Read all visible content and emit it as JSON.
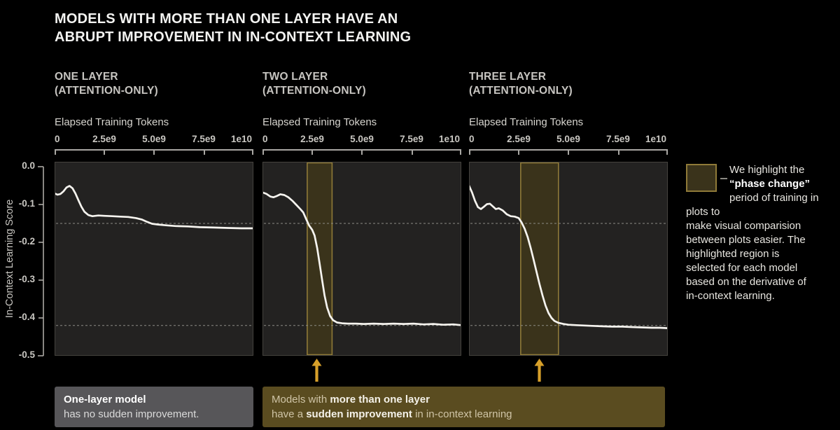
{
  "title": "MODELS WITH MORE THAN ONE LAYER HAVE AN\nABRUPT IMPROVEMENT IN IN-CONTEXT LEARNING",
  "y_axis": {
    "label": "In-Context Learning Score",
    "ticks": [
      "0.0",
      "-0.1",
      "-0.2",
      "-0.3",
      "-0.4",
      "-0.5"
    ]
  },
  "panels": [
    {
      "heading": "ONE LAYER\n(ATTENTION-ONLY)",
      "x_label": "Elapsed Training Tokens",
      "x_ticks": [
        "0",
        "2.5e9",
        "5.0e9",
        "7.5e9",
        "1e10"
      ]
    },
    {
      "heading": "TWO LAYER\n(ATTENTION-ONLY)",
      "x_label": "Elapsed Training Tokens",
      "x_ticks": [
        "0",
        "2.5e9",
        "5.0e9",
        "7.5e9",
        "1e10"
      ]
    },
    {
      "heading": "THREE LAYER\n(ATTENTION-ONLY)",
      "x_label": "Elapsed Training Tokens",
      "x_ticks": [
        "0",
        "2.5e9",
        "5.0e9",
        "7.5e9",
        "1e10"
      ]
    }
  ],
  "legend": {
    "parts": [
      {
        "t": "We highlight the\n"
      },
      {
        "t": "“phase change”",
        "b": true
      },
      {
        "t": "\nperiod of training in plots to\nmake visual comparision\nbetween plots easier. The\nhighlighted region is\nselected for each model\nbased on the derivative of\nin-context learning."
      }
    ]
  },
  "captions": {
    "one_layer": {
      "parts": [
        {
          "t": "One-layer model",
          "b": true
        },
        {
          "t": "\nhas no sudden improvement."
        }
      ]
    },
    "multi_layer": {
      "parts": [
        {
          "t": "Models with "
        },
        {
          "t": "more than one layer",
          "b": true
        },
        {
          "t": "\nhave a "
        },
        {
          "t": "sudden improvement",
          "b": true
        },
        {
          "t": " in in-context learning"
        }
      ]
    }
  },
  "colors": {
    "page_bg": "#000000",
    "plot_bg": "#232221",
    "plot_border": "#45433e",
    "curve": "#f6f4ef",
    "dashed_line": "#8c8c85",
    "highlight_fill": "#3a331b",
    "highlight_border": "#8f7a38",
    "arrow": "#d7a02a",
    "gray_box_bg": "#575659",
    "olive_box_bg": "#5a4c20",
    "axis": "#a9a7a3"
  },
  "chart_data": [
    {
      "type": "line",
      "title": "ONE LAYER (ATTENTION-ONLY)",
      "xlabel": "Elapsed Training Tokens",
      "ylabel": "In-Context Learning Score",
      "x_unit": "1e9 tokens",
      "xlim": [
        0,
        10
      ],
      "ylim": [
        -0.5,
        0
      ],
      "x_tick_labels": [
        "0",
        "2.5e9",
        "5.0e9",
        "7.5e9",
        "1e10"
      ],
      "y_tick_labels": [
        "0.0",
        "-0.1",
        "-0.2",
        "-0.3",
        "-0.4",
        "-0.5"
      ],
      "grid": false,
      "reference_lines_y": [
        -0.15,
        -0.42
      ],
      "highlight": null,
      "x": [
        0,
        0.15,
        0.3,
        0.45,
        0.6,
        0.75,
        0.9,
        1.05,
        1.2,
        1.35,
        1.5,
        1.7,
        1.9,
        2.2,
        2.5,
        2.9,
        3.3,
        3.7,
        4.1,
        4.4,
        4.65,
        4.9,
        5.2,
        5.6,
        6.1,
        6.7,
        7.3,
        8.0,
        8.7,
        9.4,
        10
      ],
      "y": [
        -0.071,
        -0.074,
        -0.072,
        -0.065,
        -0.055,
        -0.051,
        -0.057,
        -0.071,
        -0.089,
        -0.106,
        -0.119,
        -0.128,
        -0.131,
        -0.129,
        -0.13,
        -0.131,
        -0.132,
        -0.133,
        -0.136,
        -0.14,
        -0.146,
        -0.151,
        -0.153,
        -0.155,
        -0.157,
        -0.158,
        -0.16,
        -0.161,
        -0.162,
        -0.163,
        -0.163
      ]
    },
    {
      "type": "line",
      "title": "TWO LAYER (ATTENTION-ONLY)",
      "xlabel": "Elapsed Training Tokens",
      "ylabel": "In-Context Learning Score",
      "x_unit": "1e9 tokens",
      "xlim": [
        0,
        10
      ],
      "ylim": [
        -0.5,
        0
      ],
      "x_tick_labels": [
        "0",
        "2.5e9",
        "5.0e9",
        "7.5e9",
        "1e10"
      ],
      "y_tick_labels": [
        "0.0",
        "-0.1",
        "-0.2",
        "-0.3",
        "-0.4",
        "-0.5"
      ],
      "grid": false,
      "reference_lines_y": [
        -0.15,
        -0.42
      ],
      "highlight": {
        "x0": 2.25,
        "x1": 3.5
      },
      "x": [
        0,
        0.2,
        0.4,
        0.55,
        0.7,
        0.9,
        1.1,
        1.3,
        1.5,
        1.7,
        1.9,
        2.05,
        2.2,
        2.35,
        2.5,
        2.62,
        2.75,
        2.87,
        3.0,
        3.12,
        3.25,
        3.4,
        3.55,
        3.75,
        4.0,
        4.3,
        4.7,
        5.1,
        5.6,
        6.1,
        6.6,
        7.1,
        7.6,
        8.1,
        8.6,
        9.1,
        9.6,
        10
      ],
      "y": [
        -0.068,
        -0.072,
        -0.079,
        -0.081,
        -0.078,
        -0.073,
        -0.075,
        -0.081,
        -0.09,
        -0.101,
        -0.112,
        -0.121,
        -0.139,
        -0.156,
        -0.167,
        -0.182,
        -0.215,
        -0.255,
        -0.3,
        -0.34,
        -0.372,
        -0.395,
        -0.406,
        -0.412,
        -0.414,
        -0.415,
        -0.415,
        -0.416,
        -0.415,
        -0.416,
        -0.415,
        -0.416,
        -0.415,
        -0.417,
        -0.416,
        -0.418,
        -0.417,
        -0.419
      ]
    },
    {
      "type": "line",
      "title": "THREE LAYER (ATTENTION-ONLY)",
      "xlabel": "Elapsed Training Tokens",
      "ylabel": "In-Context Learning Score",
      "x_unit": "1e9 tokens",
      "xlim": [
        0,
        10
      ],
      "ylim": [
        -0.5,
        0
      ],
      "x_tick_labels": [
        "0",
        "2.5e9",
        "5.0e9",
        "7.5e9",
        "1e10"
      ],
      "y_tick_labels": [
        "0.0",
        "-0.1",
        "-0.2",
        "-0.3",
        "-0.4",
        "-0.5"
      ],
      "grid": false,
      "reference_lines_y": [
        -0.15,
        -0.42
      ],
      "highlight": {
        "x0": 2.6,
        "x1": 4.5
      },
      "x": [
        0,
        0.15,
        0.3,
        0.45,
        0.6,
        0.75,
        0.9,
        1.05,
        1.2,
        1.35,
        1.5,
        1.7,
        1.9,
        2.1,
        2.3,
        2.5,
        2.65,
        2.8,
        2.95,
        3.1,
        3.25,
        3.4,
        3.55,
        3.7,
        3.85,
        4.0,
        4.15,
        4.3,
        4.5,
        4.75,
        5.0,
        5.4,
        5.8,
        6.2,
        6.7,
        7.2,
        7.7,
        8.2,
        8.7,
        9.2,
        9.6,
        10
      ],
      "y": [
        -0.05,
        -0.068,
        -0.09,
        -0.107,
        -0.112,
        -0.106,
        -0.099,
        -0.098,
        -0.105,
        -0.112,
        -0.11,
        -0.116,
        -0.126,
        -0.131,
        -0.132,
        -0.136,
        -0.148,
        -0.164,
        -0.186,
        -0.214,
        -0.246,
        -0.279,
        -0.311,
        -0.341,
        -0.367,
        -0.387,
        -0.4,
        -0.408,
        -0.413,
        -0.416,
        -0.418,
        -0.419,
        -0.42,
        -0.421,
        -0.422,
        -0.423,
        -0.423,
        -0.424,
        -0.425,
        -0.426,
        -0.426,
        -0.427
      ]
    }
  ]
}
